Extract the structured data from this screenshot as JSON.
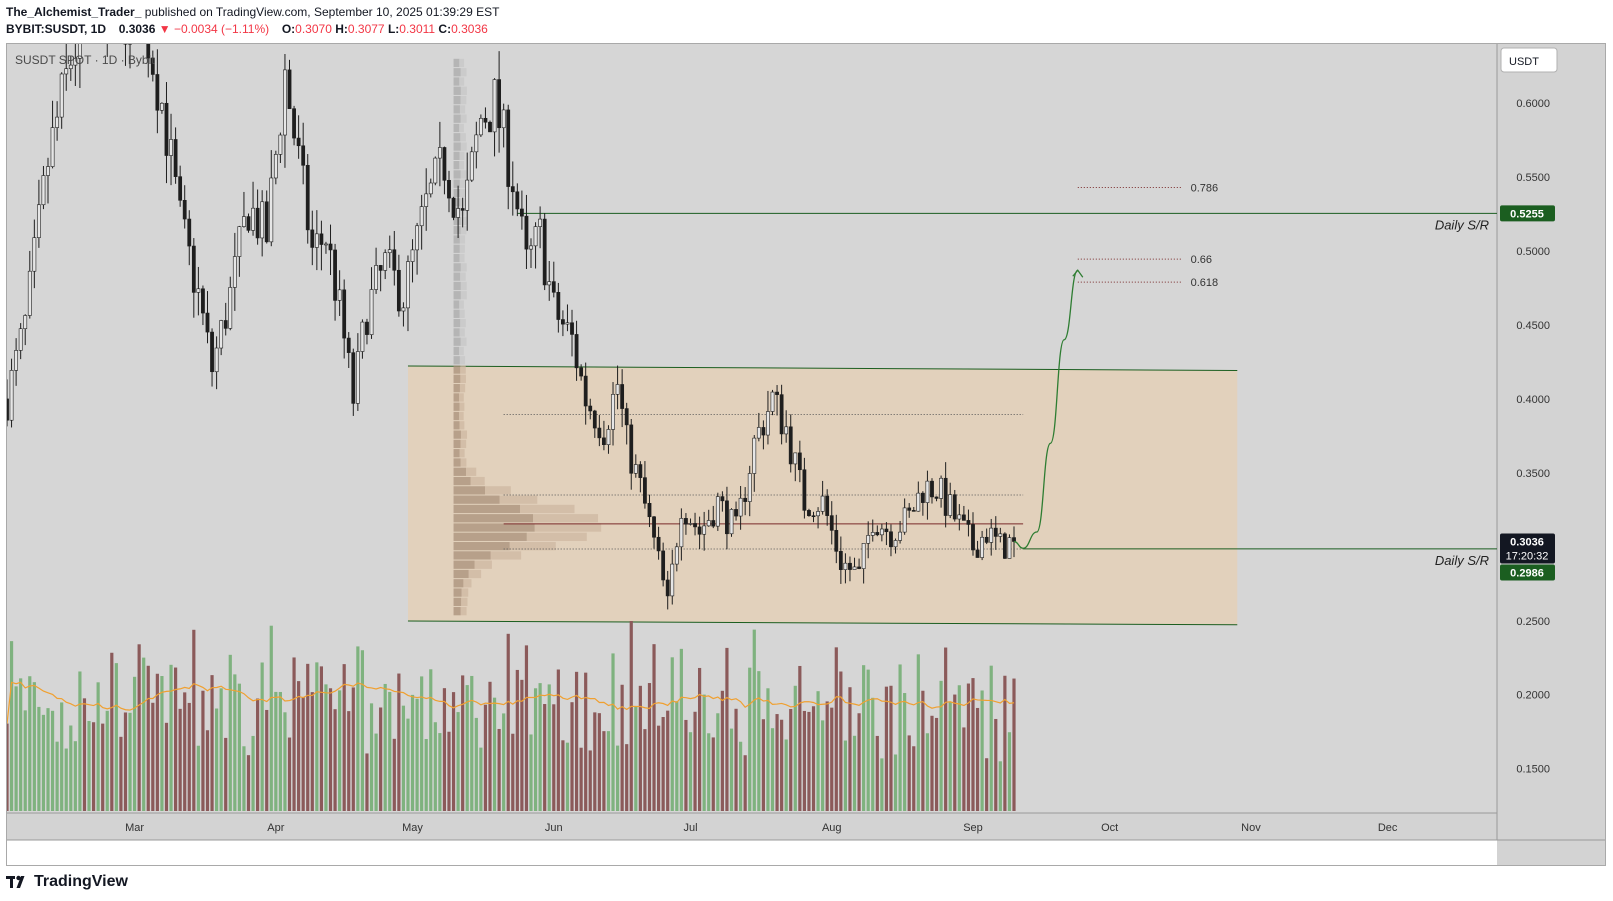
{
  "header": {
    "author": "The_Alchemist_Trader_",
    "published": "published on TradingView.com, September 10, 2025 01:39:29 EST",
    "symbol": "BYBIT:SUSDT, 1D",
    "last": "0.3036",
    "change": "▼ −0.0034 (−1.11%)",
    "o_label": "O:",
    "o": "0.3070",
    "h_label": "H:",
    "h": "0.3077",
    "l_label": "L:",
    "l": "0.3011",
    "c_label": "C:",
    "c": "0.3036"
  },
  "legend_title": "SUSDT SPOT · 1D · Bybit",
  "currency_button": "USDT",
  "logo_text": "TradingView",
  "colors": {
    "up": "#e6e6e6",
    "down": "#1e1e1e",
    "vol_up": "#7fb27f",
    "vol_down": "#8b5a5a",
    "vol_ma": "#f0a030",
    "range_box": "#e6cfb3",
    "sr_line": "#1b5e20",
    "tag_green": "#1b5e20",
    "tag_dark": "#131722",
    "fib_line": "#7a2a2a",
    "projection": "#2e7d32",
    "chart_bg": "#d6d6d6"
  },
  "chart_data": {
    "type": "candlestick",
    "title": "SUSDT SPOT · 1D · Bybit",
    "xlabel": "",
    "ylabel": "",
    "ylim": [
      0.12,
      0.64
    ],
    "y_ticks": [
      "0.6000",
      "0.5500",
      "0.5000",
      "0.4500",
      "0.4000",
      "0.3500",
      "0.2500",
      "0.2000",
      "0.1500"
    ],
    "y_tick_values": [
      0.6,
      0.55,
      0.5,
      0.45,
      0.4,
      0.35,
      0.25,
      0.2,
      0.15
    ],
    "x_ticks": [
      "Mar",
      "Apr",
      "May",
      "Jun",
      "Jul",
      "Aug",
      "Sep",
      "Oct",
      "Nov",
      "Dec"
    ],
    "x_tick_dates": [
      "2025-03-01",
      "2025-04-01",
      "2025-05-01",
      "2025-06-01",
      "2025-07-01",
      "2025-08-01",
      "2025-09-01",
      "2025-10-01",
      "2025-11-01",
      "2025-12-01"
    ],
    "x_range": [
      "2025-02-01",
      "2025-12-25"
    ],
    "price_keypoints": [
      [
        "2025-02-01",
        0.4
      ],
      [
        "2025-02-05",
        0.45
      ],
      [
        "2025-02-10",
        0.56
      ],
      [
        "2025-02-15",
        0.63
      ],
      [
        "2025-02-20",
        0.67
      ],
      [
        "2025-02-26",
        0.66
      ],
      [
        "2025-03-03",
        0.66
      ],
      [
        "2025-03-07",
        0.6
      ],
      [
        "2025-03-11",
        0.52
      ],
      [
        "2025-03-15",
        0.47
      ],
      [
        "2025-03-18",
        0.42
      ],
      [
        "2025-03-22",
        0.47
      ],
      [
        "2025-03-26",
        0.53
      ],
      [
        "2025-03-30",
        0.51
      ],
      [
        "2025-04-03",
        0.62
      ],
      [
        "2025-04-06",
        0.56
      ],
      [
        "2025-04-09",
        0.5
      ],
      [
        "2025-04-12",
        0.51
      ],
      [
        "2025-04-15",
        0.46
      ],
      [
        "2025-04-18",
        0.4
      ],
      [
        "2025-04-21",
        0.46
      ],
      [
        "2025-04-25",
        0.49
      ],
      [
        "2025-04-29",
        0.47
      ],
      [
        "2025-05-04",
        0.53
      ],
      [
        "2025-05-08",
        0.56
      ],
      [
        "2025-05-12",
        0.52
      ],
      [
        "2025-05-16",
        0.59
      ],
      [
        "2025-05-19",
        0.6
      ],
      [
        "2025-05-23",
        0.55
      ],
      [
        "2025-05-26",
        0.49
      ],
      [
        "2025-05-29",
        0.51
      ],
      [
        "2025-06-01",
        0.46
      ],
      [
        "2025-06-05",
        0.44
      ],
      [
        "2025-06-08",
        0.4
      ],
      [
        "2025-06-12",
        0.38
      ],
      [
        "2025-06-15",
        0.41
      ],
      [
        "2025-06-17",
        0.37
      ],
      [
        "2025-06-20",
        0.34
      ],
      [
        "2025-06-24",
        0.29
      ],
      [
        "2025-06-26",
        0.26
      ],
      [
        "2025-06-29",
        0.33
      ],
      [
        "2025-07-03",
        0.31
      ],
      [
        "2025-07-07",
        0.33
      ],
      [
        "2025-07-11",
        0.31
      ],
      [
        "2025-07-15",
        0.37
      ],
      [
        "2025-07-19",
        0.4
      ],
      [
        "2025-07-22",
        0.38
      ],
      [
        "2025-07-26",
        0.33
      ],
      [
        "2025-07-30",
        0.33
      ],
      [
        "2025-08-03",
        0.29
      ],
      [
        "2025-08-07",
        0.28
      ],
      [
        "2025-08-10",
        0.32
      ],
      [
        "2025-08-14",
        0.31
      ],
      [
        "2025-08-18",
        0.32
      ],
      [
        "2025-08-21",
        0.34
      ],
      [
        "2025-08-24",
        0.34
      ],
      [
        "2025-08-28",
        0.32
      ],
      [
        "2025-09-01",
        0.3
      ],
      [
        "2025-09-04",
        0.31
      ],
      [
        "2025-09-07",
        0.3
      ],
      [
        "2025-09-10",
        0.3036
      ]
    ],
    "last_price": 0.3036,
    "last_price_label": "0.3036",
    "countdown": "17:20:32",
    "support_resistance": [
      {
        "label": "Daily S/R",
        "value": 0.5255,
        "price_tag": "0.5255",
        "from": "2025-05-24"
      },
      {
        "label": "Daily S/R",
        "value": 0.2986,
        "price_tag": "0.2986",
        "from": "2025-09-12"
      }
    ],
    "range_box": {
      "from": "2025-04-30",
      "to": "2025-10-29",
      "top": [
        0.4223,
        0.4192
      ],
      "bottom": [
        0.2498,
        0.2473
      ]
    },
    "range_inner_levels": [
      {
        "value": 0.3895,
        "from": "2025-05-21",
        "to": "2025-09-12",
        "style": "dotted"
      },
      {
        "value": 0.335,
        "from": "2025-05-21",
        "to": "2025-09-12",
        "style": "dotted"
      },
      {
        "value": 0.3155,
        "from": "2025-05-21",
        "to": "2025-09-12",
        "style": "solid"
      },
      {
        "value": 0.2985,
        "from": "2025-05-21",
        "to": "2025-09-12",
        "style": "dotted"
      }
    ],
    "fib_levels": [
      {
        "label": "0.786",
        "value": 0.543
      },
      {
        "label": "0.66",
        "value": 0.4945
      },
      {
        "label": "0.618",
        "value": 0.479
      }
    ],
    "fib_from": "2025-09-24",
    "fib_to": "2025-10-17",
    "projection_path": [
      [
        "2025-09-10",
        0.3036
      ],
      [
        "2025-09-12",
        0.299
      ],
      [
        "2025-09-15",
        0.31
      ],
      [
        "2025-09-18",
        0.37
      ],
      [
        "2025-09-21",
        0.44
      ],
      [
        "2025-09-24",
        0.487
      ]
    ],
    "volume_profile": {
      "date": "2025-05-10",
      "max_width_days": 37,
      "from": 0.253,
      "to": 0.63
    }
  }
}
